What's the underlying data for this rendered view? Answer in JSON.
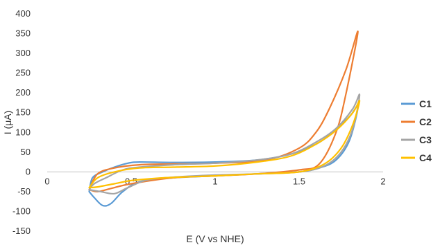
{
  "chart_data": {
    "type": "line",
    "title": "",
    "xlabel": "E (V vs NHE)",
    "ylabel": "I (μA)",
    "xlim": [
      0,
      2
    ],
    "ylim": [
      -150,
      400
    ],
    "x_ticks": [
      "0",
      "0.5",
      "1",
      "1.5",
      "2"
    ],
    "y_ticks": [
      "400",
      "350",
      "300",
      "250",
      "200",
      "150",
      "100",
      "50",
      "0",
      "-50",
      "-100",
      "-150"
    ],
    "grid": false,
    "legend_position": "right",
    "series": [
      {
        "name": "C1",
        "color": "#5b9bd5",
        "points": [
          [
            0.25,
            -50
          ],
          [
            0.28,
            -65
          ],
          [
            0.33,
            -85
          ],
          [
            0.38,
            -80
          ],
          [
            0.45,
            -50
          ],
          [
            0.55,
            -25
          ],
          [
            0.75,
            -15
          ],
          [
            1.0,
            -10
          ],
          [
            1.25,
            -5
          ],
          [
            1.5,
            0
          ],
          [
            1.62,
            10
          ],
          [
            1.72,
            30
          ],
          [
            1.8,
            80
          ],
          [
            1.85,
            165
          ],
          [
            1.8,
            140
          ],
          [
            1.7,
            100
          ],
          [
            1.6,
            70
          ],
          [
            1.45,
            45
          ],
          [
            1.25,
            30
          ],
          [
            1.0,
            25
          ],
          [
            0.75,
            24
          ],
          [
            0.55,
            25
          ],
          [
            0.48,
            22
          ],
          [
            0.4,
            12
          ],
          [
            0.33,
            0
          ],
          [
            0.27,
            -15
          ],
          [
            0.25,
            -50
          ]
        ]
      },
      {
        "name": "C2",
        "color": "#ed7d31",
        "points": [
          [
            0.25,
            -45
          ],
          [
            0.3,
            -50
          ],
          [
            0.38,
            -42
          ],
          [
            0.5,
            -30
          ],
          [
            0.75,
            -15
          ],
          [
            1.0,
            -10
          ],
          [
            1.25,
            -5
          ],
          [
            1.5,
            5
          ],
          [
            1.62,
            20
          ],
          [
            1.72,
            100
          ],
          [
            1.78,
            200
          ],
          [
            1.85,
            355
          ],
          [
            1.78,
            260
          ],
          [
            1.68,
            160
          ],
          [
            1.6,
            100
          ],
          [
            1.5,
            60
          ],
          [
            1.3,
            30
          ],
          [
            1.0,
            22
          ],
          [
            0.75,
            20
          ],
          [
            0.55,
            18
          ],
          [
            0.4,
            10
          ],
          [
            0.3,
            -5
          ],
          [
            0.25,
            -45
          ]
        ]
      },
      {
        "name": "C3",
        "color": "#a5a5a5",
        "points": [
          [
            0.25,
            -45
          ],
          [
            0.32,
            -50
          ],
          [
            0.4,
            -55
          ],
          [
            0.48,
            -40
          ],
          [
            0.6,
            -20
          ],
          [
            0.8,
            -12
          ],
          [
            1.0,
            -8
          ],
          [
            1.25,
            -5
          ],
          [
            1.5,
            0
          ],
          [
            1.65,
            15
          ],
          [
            1.75,
            50
          ],
          [
            1.82,
            110
          ],
          [
            1.86,
            195
          ],
          [
            1.82,
            160
          ],
          [
            1.72,
            110
          ],
          [
            1.6,
            75
          ],
          [
            1.45,
            45
          ],
          [
            1.25,
            30
          ],
          [
            1.0,
            22
          ],
          [
            0.75,
            18
          ],
          [
            0.55,
            12
          ],
          [
            0.45,
            5
          ],
          [
            0.35,
            -15
          ],
          [
            0.28,
            -30
          ],
          [
            0.25,
            -45
          ]
        ]
      },
      {
        "name": "C4",
        "color": "#ffc000",
        "points": [
          [
            0.25,
            -40
          ],
          [
            0.3,
            -38
          ],
          [
            0.4,
            -30
          ],
          [
            0.5,
            -22
          ],
          [
            0.7,
            -15
          ],
          [
            1.0,
            -10
          ],
          [
            1.25,
            -5
          ],
          [
            1.5,
            0
          ],
          [
            1.65,
            20
          ],
          [
            1.75,
            60
          ],
          [
            1.82,
            120
          ],
          [
            1.86,
            180
          ],
          [
            1.82,
            150
          ],
          [
            1.72,
            105
          ],
          [
            1.6,
            70
          ],
          [
            1.45,
            40
          ],
          [
            1.25,
            25
          ],
          [
            1.0,
            15
          ],
          [
            0.75,
            12
          ],
          [
            0.55,
            10
          ],
          [
            0.4,
            0
          ],
          [
            0.3,
            -15
          ],
          [
            0.25,
            -40
          ]
        ]
      }
    ]
  }
}
